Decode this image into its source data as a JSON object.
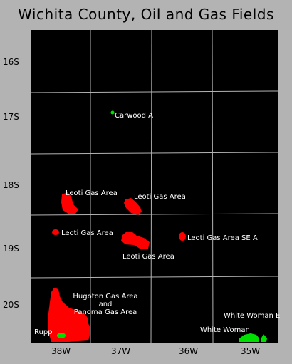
{
  "title": "Wichita County, Oil and Gas Fields",
  "township_labels": [
    "16S",
    "17S",
    "18S",
    "19S",
    "20S"
  ],
  "range_labels": [
    "38W",
    "37W",
    "36W",
    "35W"
  ],
  "colors": {
    "background": "#b3b3b3",
    "map_fill": "#000000",
    "grid": "#b3b3b3",
    "gas": "#ff0000",
    "oil": "#00e000",
    "label_text": "#ffffff"
  },
  "fields": [
    {
      "name": "Carwood A",
      "type": "oil"
    },
    {
      "name": "Leoti Gas Area",
      "type": "gas"
    },
    {
      "name": "Leoti Gas Area",
      "type": "gas"
    },
    {
      "name": "Leoti Gas Area",
      "type": "gas"
    },
    {
      "name": "Leoti Gas Area",
      "type": "gas"
    },
    {
      "name": "Leoti Gas Area SE A",
      "type": "gas"
    },
    {
      "name": "Hugoton Gas Area\nand\nPanoma Gas Area",
      "type": "gas"
    },
    {
      "name": "Rupp",
      "type": "oil"
    },
    {
      "name": "White Woman",
      "type": "oil"
    },
    {
      "name": "White Woman E",
      "type": "oil"
    }
  ]
}
